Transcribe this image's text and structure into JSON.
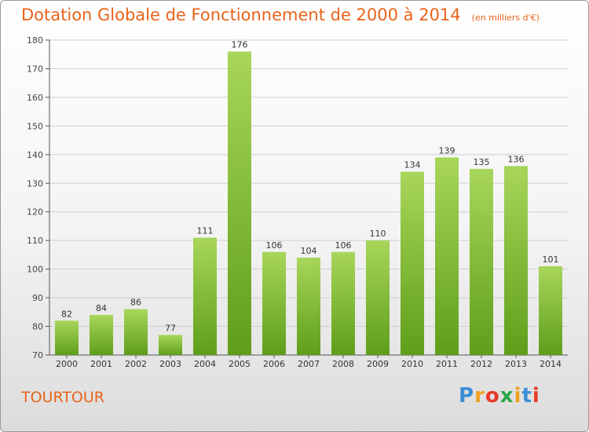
{
  "header": {
    "title": "Dotation Globale de Fonctionnement de 2000 à 2014",
    "unit": "(en milliers d'€)"
  },
  "footer": {
    "city": "TOURTOUR",
    "logo_letters": [
      "P",
      "r",
      "o",
      "x",
      "i",
      "t",
      "i"
    ],
    "logo_colors": [
      "#3a8fd6",
      "#f0a020",
      "#e83a2a",
      "#2aa84a",
      "#f0a020",
      "#3a8fd6",
      "#e83a2a"
    ]
  },
  "colors": {
    "title": "#e8631a",
    "bar_top": "#a8d65a",
    "bar_bottom": "#5e9e1a",
    "grid": "#cfcfcf",
    "axis": "#555555"
  },
  "chart_data": {
    "type": "bar",
    "categories": [
      "2000",
      "2001",
      "2002",
      "2003",
      "2004",
      "2005",
      "2006",
      "2007",
      "2008",
      "2009",
      "2010",
      "2011",
      "2012",
      "2013",
      "2014"
    ],
    "values": [
      82,
      84,
      86,
      77,
      111,
      176,
      106,
      104,
      106,
      110,
      134,
      139,
      135,
      136,
      101
    ],
    "title": "Dotation Globale de Fonctionnement de 2000 à 2014",
    "xlabel": "",
    "ylabel": "",
    "ylim": [
      70,
      180
    ],
    "yticks": [
      70,
      80,
      90,
      100,
      110,
      120,
      130,
      140,
      150,
      160,
      170,
      180
    ],
    "grid": true
  }
}
